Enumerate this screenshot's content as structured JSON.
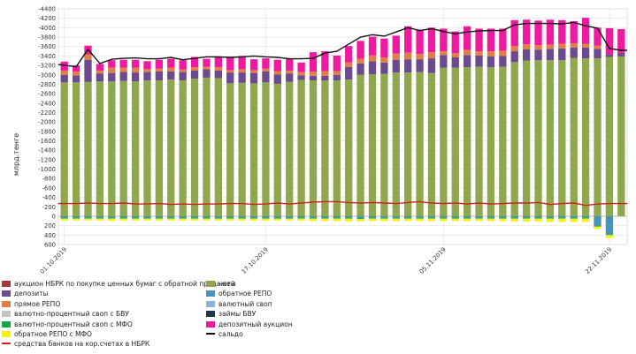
{
  "chart_data": {
    "type": "bar",
    "stacked": true,
    "ylabel": "млрд.тенге",
    "ylim": [
      -600,
      4400
    ],
    "y_ticks_positive": [
      200,
      400,
      600,
      800,
      1000,
      1200,
      1400,
      1600,
      1800,
      2000,
      2200,
      2400,
      2600,
      2800,
      3000,
      3200,
      3400,
      3600,
      3800,
      4000,
      4200,
      4400
    ],
    "y_tick_labels_positive": [
      "-200",
      "-400",
      "-600",
      "-800",
      "-1000",
      "-1200",
      "-1400",
      "-1600",
      "-1800",
      "-2000",
      "-2200",
      "-2400",
      "-2600",
      "-2800",
      "-3000",
      "-3200",
      "-3400",
      "-3600",
      "-3800",
      "-4000",
      "-4200",
      "-4400"
    ],
    "y_ticks_negative": [
      0,
      -200,
      -400,
      -600
    ],
    "y_tick_labels_negative": [
      "0",
      "200",
      "400",
      "600"
    ],
    "x_labels": [
      {
        "index": 0,
        "label": "01.10.2019"
      },
      {
        "index": 17,
        "label": "17.10.2019"
      },
      {
        "index": 32,
        "label": "05.11.2019"
      },
      {
        "index": 46,
        "label": "22.11.2019"
      }
    ],
    "categories_count": 48,
    "grid": true,
    "legend_position": "bottom",
    "legend": [
      {
        "label": "аукцион НБРК по покупке ценных бумаг с обратной продажей",
        "color": "#a5383a",
        "kind": "box"
      },
      {
        "label": "депозиты",
        "color": "#6c4a8e",
        "kind": "box"
      },
      {
        "label": "прямое РЕПО",
        "color": "#e07f45",
        "kind": "box"
      },
      {
        "label": "валютно-процентный своп с БВУ",
        "color": "#c4c4c4",
        "kind": "box"
      },
      {
        "label": "валютно-процентный своп с МФО",
        "color": "#1aa34a",
        "kind": "box"
      },
      {
        "label": "обратное РЕПО с МФО",
        "color": "#f4f016",
        "kind": "box"
      },
      {
        "label": "средства банков на кор.счетах в НБРК",
        "color": "#d02020",
        "kind": "line"
      },
      {
        "label": "ноты",
        "color": "#8fa84e",
        "kind": "box"
      },
      {
        "label": "обратное РЕПО",
        "color": "#4a92b8",
        "kind": "box"
      },
      {
        "label": "валютный своп",
        "color": "#8ab4d8",
        "kind": "box"
      },
      {
        "label": "займы БВУ",
        "color": "#1f3550",
        "kind": "box"
      },
      {
        "label": "депозитный аукцион",
        "color": "#ee1aa0",
        "kind": "box"
      },
      {
        "label": "сальдо",
        "color": "#111111",
        "kind": "line"
      }
    ],
    "series": [
      {
        "name": "ноты",
        "color": "#8fa84e",
        "values": [
          2840,
          2840,
          2850,
          2860,
          2860,
          2870,
          2860,
          2880,
          2880,
          2900,
          2880,
          2920,
          2940,
          2930,
          2820,
          2830,
          2820,
          2840,
          2810,
          2850,
          2890,
          2880,
          2880,
          2880,
          2900,
          3000,
          3010,
          3020,
          3050,
          3050,
          3060,
          3040,
          3150,
          3150,
          3160,
          3170,
          3160,
          3170,
          3270,
          3300,
          3310,
          3310,
          3310,
          3360,
          3350,
          3350,
          3380,
          3390
        ]
      },
      {
        "name": "депозиты",
        "color": "#6c4a8e",
        "values": [
          160,
          150,
          470,
          170,
          180,
          190,
          190,
          180,
          190,
          170,
          180,
          170,
          180,
          160,
          230,
          220,
          220,
          230,
          200,
          180,
          100,
          100,
          100,
          120,
          270,
          240,
          280,
          240,
          270,
          280,
          270,
          310,
          270,
          220,
          260,
          240,
          230,
          230,
          230,
          240,
          220,
          240,
          250,
          220,
          230,
          200,
          60,
          80
        ]
      },
      {
        "name": "прямое РЕПО",
        "color": "#e07f45",
        "values": [
          90,
          80,
          110,
          60,
          110,
          90,
          100,
          60,
          60,
          80,
          50,
          70,
          50,
          70,
          50,
          70,
          60,
          60,
          70,
          60,
          70,
          90,
          100,
          80,
          90,
          100,
          120,
          110,
          130,
          140,
          110,
          130,
          80,
          90,
          110,
          90,
          110,
          110,
          110,
          110,
          100,
          90,
          100,
          90,
          80,
          70,
          0,
          0
        ]
      },
      {
        "name": "депозитный аукцион",
        "color": "#ee1aa0",
        "values": [
          190,
          130,
          190,
          140,
          160,
          170,
          170,
          170,
          190,
          190,
          200,
          220,
          170,
          230,
          280,
          280,
          230,
          220,
          240,
          250,
          200,
          410,
          420,
          330,
          350,
          380,
          400,
          400,
          380,
          560,
          520,
          520,
          480,
          460,
          500,
          480,
          480,
          470,
          550,
          520,
          520,
          530,
          500,
          470,
          550,
          380,
          550,
          500
        ]
      },
      {
        "name": "обратное РЕПО",
        "color": "#4a92b8",
        "values": [
          -30,
          -30,
          -30,
          -30,
          -30,
          -30,
          -30,
          -30,
          -30,
          -30,
          -30,
          -30,
          -30,
          -30,
          -30,
          -30,
          -30,
          -30,
          -30,
          -30,
          -30,
          -30,
          -30,
          -30,
          -30,
          -40,
          -30,
          -30,
          -30,
          -30,
          -30,
          -30,
          -30,
          -30,
          -30,
          -30,
          -30,
          -30,
          -30,
          -30,
          -30,
          -30,
          -30,
          -30,
          -30,
          -200,
          -380,
          0
        ]
      },
      {
        "name": "валютно-процентный своп с МФО",
        "color": "#1aa34a",
        "values": [
          -20,
          -20,
          -20,
          -20,
          -20,
          -20,
          -20,
          -20,
          -20,
          -20,
          -20,
          -20,
          -20,
          -20,
          -20,
          -20,
          -20,
          -20,
          -20,
          -20,
          -20,
          -20,
          -20,
          -20,
          -20,
          -20,
          -20,
          -20,
          -20,
          -20,
          -20,
          -20,
          -20,
          -20,
          -20,
          -20,
          -20,
          -20,
          -20,
          -20,
          -20,
          -20,
          -20,
          -20,
          -20,
          -20,
          -20,
          0
        ]
      },
      {
        "name": "обратное РЕПО с МФО",
        "color": "#f4f016",
        "values": [
          -40,
          -40,
          -40,
          -40,
          -50,
          -40,
          -40,
          -40,
          -40,
          -40,
          -40,
          -40,
          -40,
          -40,
          -40,
          -40,
          -40,
          -40,
          -40,
          -40,
          -40,
          -50,
          -50,
          -50,
          -60,
          -50,
          -50,
          -50,
          -50,
          -50,
          -50,
          -50,
          -50,
          -50,
          -50,
          -50,
          -50,
          -50,
          -60,
          -60,
          -60,
          -70,
          -70,
          -70,
          -70,
          -50,
          -60,
          0
        ]
      }
    ],
    "lines": [
      {
        "name": "средства банков на кор.счетах в НБРК",
        "color": "#d02020",
        "values": [
          270,
          270,
          280,
          270,
          270,
          280,
          260,
          260,
          270,
          250,
          260,
          250,
          260,
          260,
          270,
          270,
          250,
          260,
          280,
          260,
          280,
          300,
          310,
          310,
          290,
          280,
          290,
          280,
          270,
          290,
          310,
          280,
          270,
          280,
          260,
          280,
          260,
          270,
          280,
          280,
          290,
          250,
          270,
          280,
          230,
          260,
          270,
          270
        ]
      },
      {
        "name": "сальдо",
        "color": "#111111",
        "values": [
          3220,
          3170,
          3540,
          3240,
          3330,
          3350,
          3360,
          3340,
          3340,
          3370,
          3320,
          3350,
          3380,
          3380,
          3370,
          3380,
          3400,
          3380,
          3370,
          3340,
          3340,
          3350,
          3460,
          3500,
          3650,
          3800,
          3850,
          3820,
          3910,
          4000,
          3940,
          3980,
          3920,
          3870,
          3910,
          3930,
          3940,
          3940,
          4060,
          4090,
          4090,
          4090,
          4080,
          4110,
          4040,
          3990,
          3560,
          3520
        ]
      }
    ]
  }
}
